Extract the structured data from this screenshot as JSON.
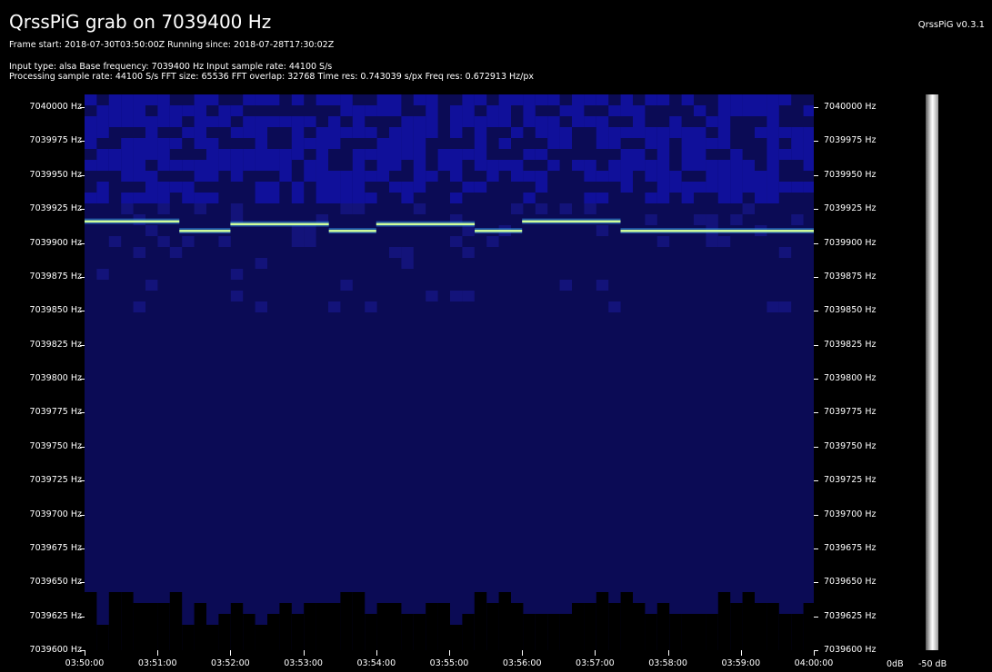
{
  "header": {
    "title": "QrssPiG grab on 7039400 Hz",
    "version": "QrssPiG v0.3.1",
    "line1": "Frame start: 2018-07-30T03:50:00Z Running since: 2018-07-28T17:30:02Z",
    "line2": "Input type: alsa Base frequency: 7039400 Hz Input sample rate: 44100 S/s",
    "line3": "Processing sample rate: 44100 S/s FFT size: 65536 FFT overlap: 32768 Time res: 0.743039 s/px Freq res: 0.672913 Hz/px"
  },
  "frequency_axis": {
    "labels": [
      "7040000 Hz",
      "7039975 Hz",
      "7039950 Hz",
      "7039925 Hz",
      "7039900 Hz",
      "7039875 Hz",
      "7039850 Hz",
      "7039825 Hz",
      "7039800 Hz",
      "7039775 Hz",
      "7039750 Hz",
      "7039725 Hz",
      "7039700 Hz",
      "7039675 Hz",
      "7039650 Hz",
      "7039625 Hz",
      "7039600 Hz"
    ],
    "min_hz": 7039600,
    "max_hz": 7040000
  },
  "time_axis": {
    "labels": [
      "03:50:00",
      "03:51:00",
      "03:52:00",
      "03:53:00",
      "03:54:00",
      "03:55:00",
      "03:56:00",
      "03:57:00",
      "03:58:00",
      "03:59:00",
      "04:00:00"
    ],
    "start_min": 0,
    "end_min": 10
  },
  "db_scale": {
    "top_label": "0dB",
    "bottom_label": "-50 dB"
  },
  "signal_trace": {
    "color": "#cfff9a",
    "segments": [
      {
        "t0": 0.0,
        "t1": 1.3,
        "hz": 7039916
      },
      {
        "t0": 1.3,
        "t1": 2.0,
        "hz": 7039909
      },
      {
        "t0": 2.0,
        "t1": 3.35,
        "hz": 7039914
      },
      {
        "t0": 3.35,
        "t1": 4.0,
        "hz": 7039909
      },
      {
        "t0": 4.0,
        "t1": 5.35,
        "hz": 7039914
      },
      {
        "t0": 5.35,
        "t1": 6.0,
        "hz": 7039909
      },
      {
        "t0": 6.0,
        "t1": 7.35,
        "hz": 7039916
      },
      {
        "t0": 7.35,
        "t1": 10.0,
        "hz": 7039909
      }
    ]
  },
  "colors": {
    "background": "#0b0b55",
    "noise": "#10109a",
    "floor": "#000000"
  }
}
